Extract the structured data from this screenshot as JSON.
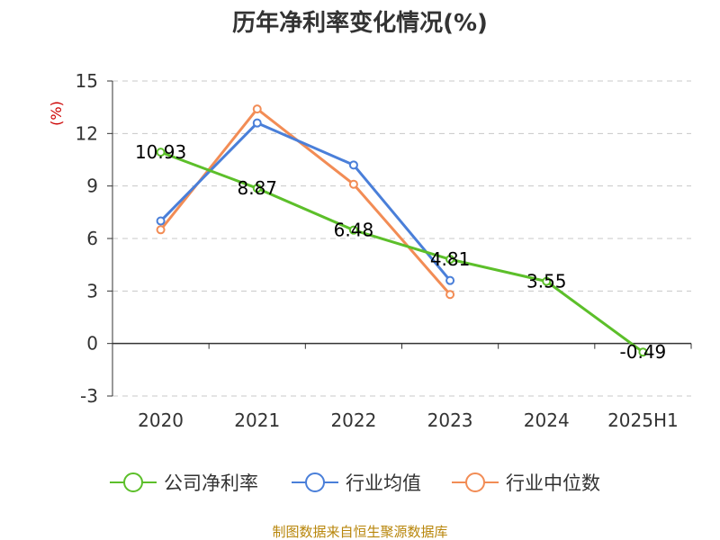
{
  "chart_data": {
    "type": "line",
    "title": "历年净利率变化情况(%)",
    "ylabel": "(%)",
    "xlabel": "",
    "categories": [
      "2020",
      "2021",
      "2022",
      "2023",
      "2024",
      "2025H1"
    ],
    "ylim": [
      -3,
      15
    ],
    "yticks": [
      "15",
      "12",
      "9",
      "6",
      "3",
      "0",
      "-3"
    ],
    "grid": true,
    "legend_position": "bottom",
    "series": [
      {
        "name": "公司净利率",
        "color": "#5cbf2a",
        "values": [
          10.93,
          8.87,
          6.48,
          4.81,
          3.55,
          -0.49
        ],
        "labels": [
          "10.93",
          "8.87",
          "6.48",
          "4.81",
          "3.55",
          "-0.49"
        ]
      },
      {
        "name": "行业均值",
        "color": "#4a7fd9",
        "values": [
          7.0,
          12.6,
          10.2,
          3.6,
          null,
          null
        ]
      },
      {
        "name": "行业中位数",
        "color": "#f28c55",
        "values": [
          6.5,
          13.4,
          9.1,
          2.8,
          null,
          null
        ]
      }
    ]
  },
  "source_text": "制图数据来自恒生聚源数据库"
}
